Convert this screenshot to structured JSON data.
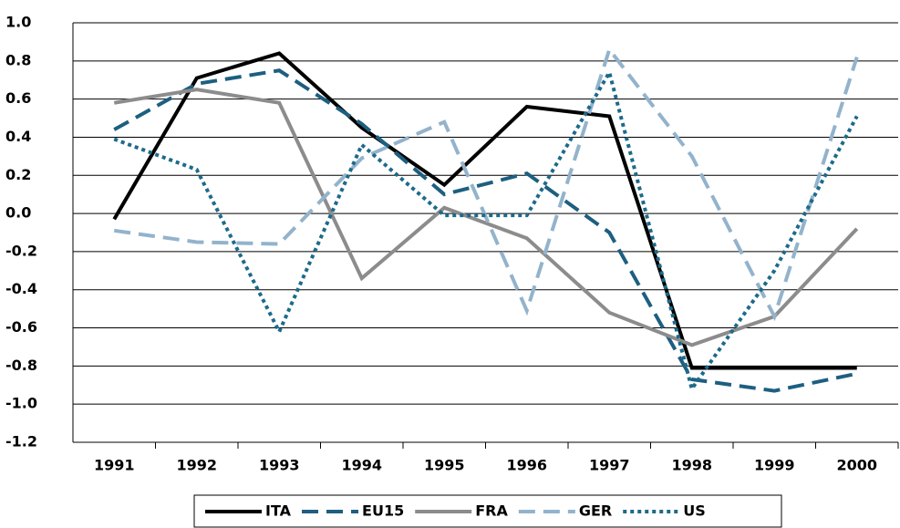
{
  "chart_data": {
    "type": "line",
    "categories": [
      "1991",
      "1992",
      "1993",
      "1994",
      "1995",
      "1996",
      "1997",
      "1998",
      "1999",
      "2000"
    ],
    "series": [
      {
        "name": "ITA",
        "color": "#000000",
        "dash": "solid",
        "values": [
          -0.03,
          0.71,
          0.84,
          0.45,
          0.15,
          0.56,
          0.51,
          -0.81,
          -0.81,
          -0.81
        ]
      },
      {
        "name": "EU15",
        "color": "#1d5f80",
        "dash": "dashed",
        "values": [
          0.44,
          0.68,
          0.75,
          0.47,
          0.1,
          0.21,
          -0.1,
          -0.87,
          -0.93,
          -0.84
        ]
      },
      {
        "name": "FRA",
        "color": "#8c8c8c",
        "dash": "solid",
        "values": [
          0.58,
          0.65,
          0.58,
          -0.34,
          0.03,
          -0.13,
          -0.52,
          -0.69,
          -0.54,
          -0.08
        ]
      },
      {
        "name": "GER",
        "color": "#93b3cc",
        "dash": "dashed",
        "values": [
          -0.09,
          -0.15,
          -0.16,
          0.29,
          0.48,
          -0.51,
          0.86,
          0.3,
          -0.54,
          0.82
        ]
      },
      {
        "name": "US",
        "color": "#1d6a8a",
        "dash": "dotted",
        "values": [
          0.39,
          0.23,
          -0.62,
          0.36,
          -0.01,
          -0.01,
          0.74,
          -0.92,
          -0.3,
          0.51
        ]
      }
    ],
    "ylim": [
      -1.2,
      1.0
    ],
    "yticks": [
      {
        "value": -1.2,
        "label": "-1.2"
      },
      {
        "value": -1.0,
        "label": "-1.0"
      },
      -0.8,
      -0.6,
      -0.4,
      -0.2,
      {
        "value": 0,
        "label": "0.0"
      },
      0.2,
      0.4,
      0.6,
      0.8,
      {
        "value": 1.0,
        "label": "1.0"
      }
    ],
    "grid": true,
    "legend": "bottom"
  }
}
